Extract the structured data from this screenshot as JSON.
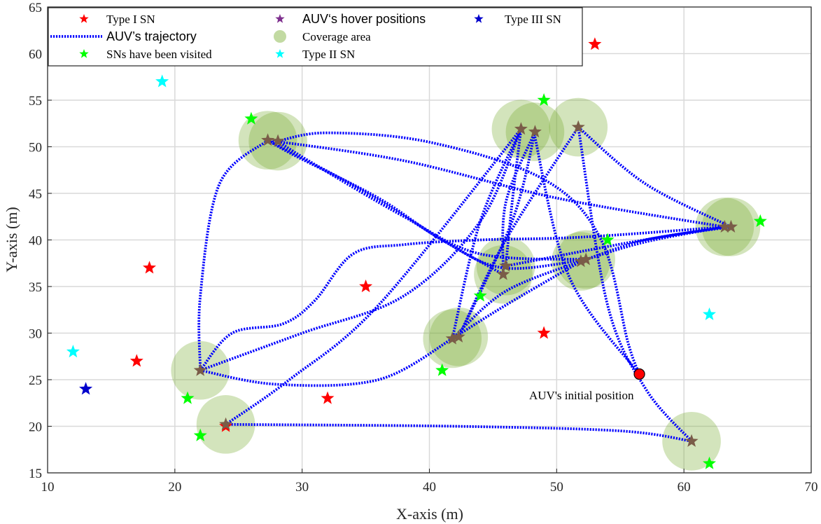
{
  "chart_data": {
    "type": "scatter",
    "xlabel": "X-axis (m)",
    "ylabel": "Y-axis (m)",
    "xlim": [
      10,
      70
    ],
    "ylim": [
      15,
      65
    ],
    "xticks": [
      10,
      20,
      30,
      40,
      50,
      60,
      70
    ],
    "yticks": [
      15,
      20,
      25,
      30,
      35,
      40,
      45,
      50,
      55,
      60,
      65
    ],
    "grid": true,
    "legend_position": "top-left",
    "colors": {
      "type1": "#ff0000",
      "type2": "#00ffff",
      "type3": "#0000cc",
      "visited": "#00ff00",
      "hover": "#7e2f8e",
      "hover_overlap": "#7a5c48",
      "trajectory": "#0000ff",
      "coverage": "#77ac30",
      "initial": "#ff0000",
      "grid": "#d9d9d9"
    },
    "legend": {
      "type1": "Type I SN",
      "trajectory": "AUV’s trajectory",
      "visited": "SNs have been visited",
      "hover": "AUV‘s hover positions",
      "coverage": "Coverage area",
      "type2": "Type II SN",
      "type3": "Type III SN"
    },
    "type1_sn": [
      [
        53,
        61
      ],
      [
        18,
        37
      ],
      [
        35,
        35
      ],
      [
        17,
        27
      ],
      [
        49,
        30
      ],
      [
        32,
        23
      ],
      [
        24,
        20
      ]
    ],
    "type2_sn": [
      [
        19,
        57
      ],
      [
        12,
        28
      ],
      [
        62,
        32
      ]
    ],
    "type3_sn": [
      [
        13,
        24
      ]
    ],
    "visited_sn": [
      [
        26,
        53
      ],
      [
        49,
        55
      ],
      [
        66,
        42
      ],
      [
        54,
        40
      ],
      [
        44,
        34
      ],
      [
        41,
        26
      ],
      [
        21,
        23
      ],
      [
        22,
        19
      ],
      [
        62,
        16
      ]
    ],
    "hover_positions": [
      [
        27.3,
        50.7
      ],
      [
        28.1,
        50.6
      ],
      [
        47.2,
        51.9
      ],
      [
        48.3,
        51.6
      ],
      [
        51.7,
        52.1
      ],
      [
        63.2,
        41.4
      ],
      [
        63.7,
        41.4
      ],
      [
        45.8,
        36.3
      ],
      [
        46.0,
        37.2
      ],
      [
        51.9,
        37.7
      ],
      [
        52.3,
        37.9
      ],
      [
        41.8,
        29.4
      ],
      [
        42.3,
        29.6
      ],
      [
        22.0,
        26.0
      ],
      [
        24.0,
        20.2
      ],
      [
        60.6,
        18.4
      ]
    ],
    "coverage_centers": [
      [
        27.3,
        50.7
      ],
      [
        28.1,
        50.6
      ],
      [
        47.2,
        51.9
      ],
      [
        48.3,
        51.6
      ],
      [
        51.7,
        52.1
      ],
      [
        63.2,
        41.4
      ],
      [
        63.7,
        41.4
      ],
      [
        45.8,
        36.3
      ],
      [
        46.0,
        37.2
      ],
      [
        51.9,
        37.7
      ],
      [
        52.3,
        37.9
      ],
      [
        41.8,
        29.4
      ],
      [
        42.3,
        29.6
      ],
      [
        22.0,
        26.0
      ],
      [
        24.0,
        20.2
      ],
      [
        60.6,
        18.4
      ]
    ],
    "coverage_radius": 2.3,
    "initial_position": [
      56.5,
      25.6
    ],
    "initial_label": "AUV's initial position",
    "trajectory": [
      [
        [
          56.5,
          25.6
        ],
        [
          51.0,
          36.0
        ],
        [
          48.2,
          51.6
        ]
      ],
      [
        [
          56.5,
          25.6
        ],
        [
          55.6,
          29.0
        ],
        [
          53.5,
          40.0
        ],
        [
          49.0,
          46.5
        ],
        [
          40.0,
          50.5
        ],
        [
          32.0,
          51.5
        ],
        [
          28.1,
          50.6
        ]
      ],
      [
        [
          28.1,
          50.6
        ],
        [
          30.5,
          48.5
        ],
        [
          38.0,
          42.5
        ],
        [
          44.0,
          38.5
        ],
        [
          52.3,
          37.9
        ]
      ],
      [
        [
          52.3,
          37.9
        ],
        [
          57.0,
          39.8
        ],
        [
          63.2,
          41.4
        ]
      ],
      [
        [
          63.2,
          41.4
        ],
        [
          56.0,
          39.8
        ],
        [
          46.0,
          37.2
        ]
      ],
      [
        [
          46.0,
          37.2
        ],
        [
          46.5,
          44.0
        ],
        [
          47.2,
          51.9
        ]
      ],
      [
        [
          47.2,
          51.9
        ],
        [
          44.0,
          42.0
        ],
        [
          41.8,
          29.4
        ]
      ],
      [
        [
          41.8,
          29.4
        ],
        [
          46.0,
          33.0
        ],
        [
          51.9,
          37.7
        ]
      ],
      [
        [
          51.9,
          37.7
        ],
        [
          57.0,
          40.0
        ],
        [
          63.7,
          41.4
        ]
      ],
      [
        [
          63.7,
          41.4
        ],
        [
          57.0,
          46.0
        ],
        [
          51.7,
          52.1
        ]
      ],
      [
        [
          51.7,
          52.1
        ],
        [
          46.0,
          40.0
        ],
        [
          42.3,
          29.6
        ]
      ],
      [
        [
          42.3,
          29.6
        ],
        [
          46.5,
          42.0
        ],
        [
          48.3,
          51.6
        ]
      ],
      [
        [
          48.3,
          51.6
        ],
        [
          46.0,
          44.0
        ],
        [
          45.8,
          36.3
        ]
      ],
      [
        [
          45.8,
          36.3
        ],
        [
          41.0,
          40.0
        ],
        [
          34.5,
          45.5
        ],
        [
          27.3,
          50.7
        ]
      ],
      [
        [
          27.3,
          50.7
        ],
        [
          23.5,
          46.0
        ],
        [
          22.0,
          34.0
        ],
        [
          22.0,
          26.0
        ]
      ],
      [
        [
          22.0,
          26.0
        ],
        [
          24.5,
          30.0
        ],
        [
          28.5,
          31.0
        ],
        [
          31.0,
          33.5
        ],
        [
          34.0,
          38.5
        ],
        [
          38.0,
          39.5
        ],
        [
          44.0,
          40.0
        ],
        [
          52.0,
          40.3
        ],
        [
          63.2,
          41.4
        ]
      ],
      [
        [
          63.2,
          41.4
        ],
        [
          50.0,
          44.5
        ],
        [
          38.0,
          48.5
        ],
        [
          27.3,
          50.7
        ]
      ],
      [
        [
          27.3,
          50.7
        ],
        [
          29.5,
          49.0
        ],
        [
          36.0,
          44.5
        ],
        [
          41.0,
          40.0
        ],
        [
          45.8,
          37.0
        ],
        [
          52.3,
          37.9
        ]
      ],
      [
        [
          52.3,
          37.9
        ],
        [
          46.0,
          34.5
        ],
        [
          41.8,
          29.4
        ]
      ],
      [
        [
          41.8,
          29.4
        ],
        [
          36.0,
          25.0
        ],
        [
          28.0,
          24.5
        ],
        [
          22.0,
          26.0
        ]
      ],
      [
        [
          22.0,
          26.0
        ],
        [
          30.0,
          30.0
        ],
        [
          38.0,
          34.0
        ],
        [
          44.0,
          42.0
        ],
        [
          47.2,
          51.9
        ]
      ],
      [
        [
          47.2,
          51.9
        ],
        [
          36.0,
          33.0
        ],
        [
          29.0,
          25.0
        ],
        [
          24.0,
          20.2
        ]
      ],
      [
        [
          24.0,
          20.2
        ],
        [
          42.0,
          20.0
        ],
        [
          55.0,
          19.5
        ],
        [
          60.6,
          18.4
        ]
      ],
      [
        [
          60.6,
          18.4
        ],
        [
          57.0,
          24.0
        ],
        [
          54.0,
          33.0
        ],
        [
          51.7,
          52.1
        ]
      ]
    ]
  }
}
